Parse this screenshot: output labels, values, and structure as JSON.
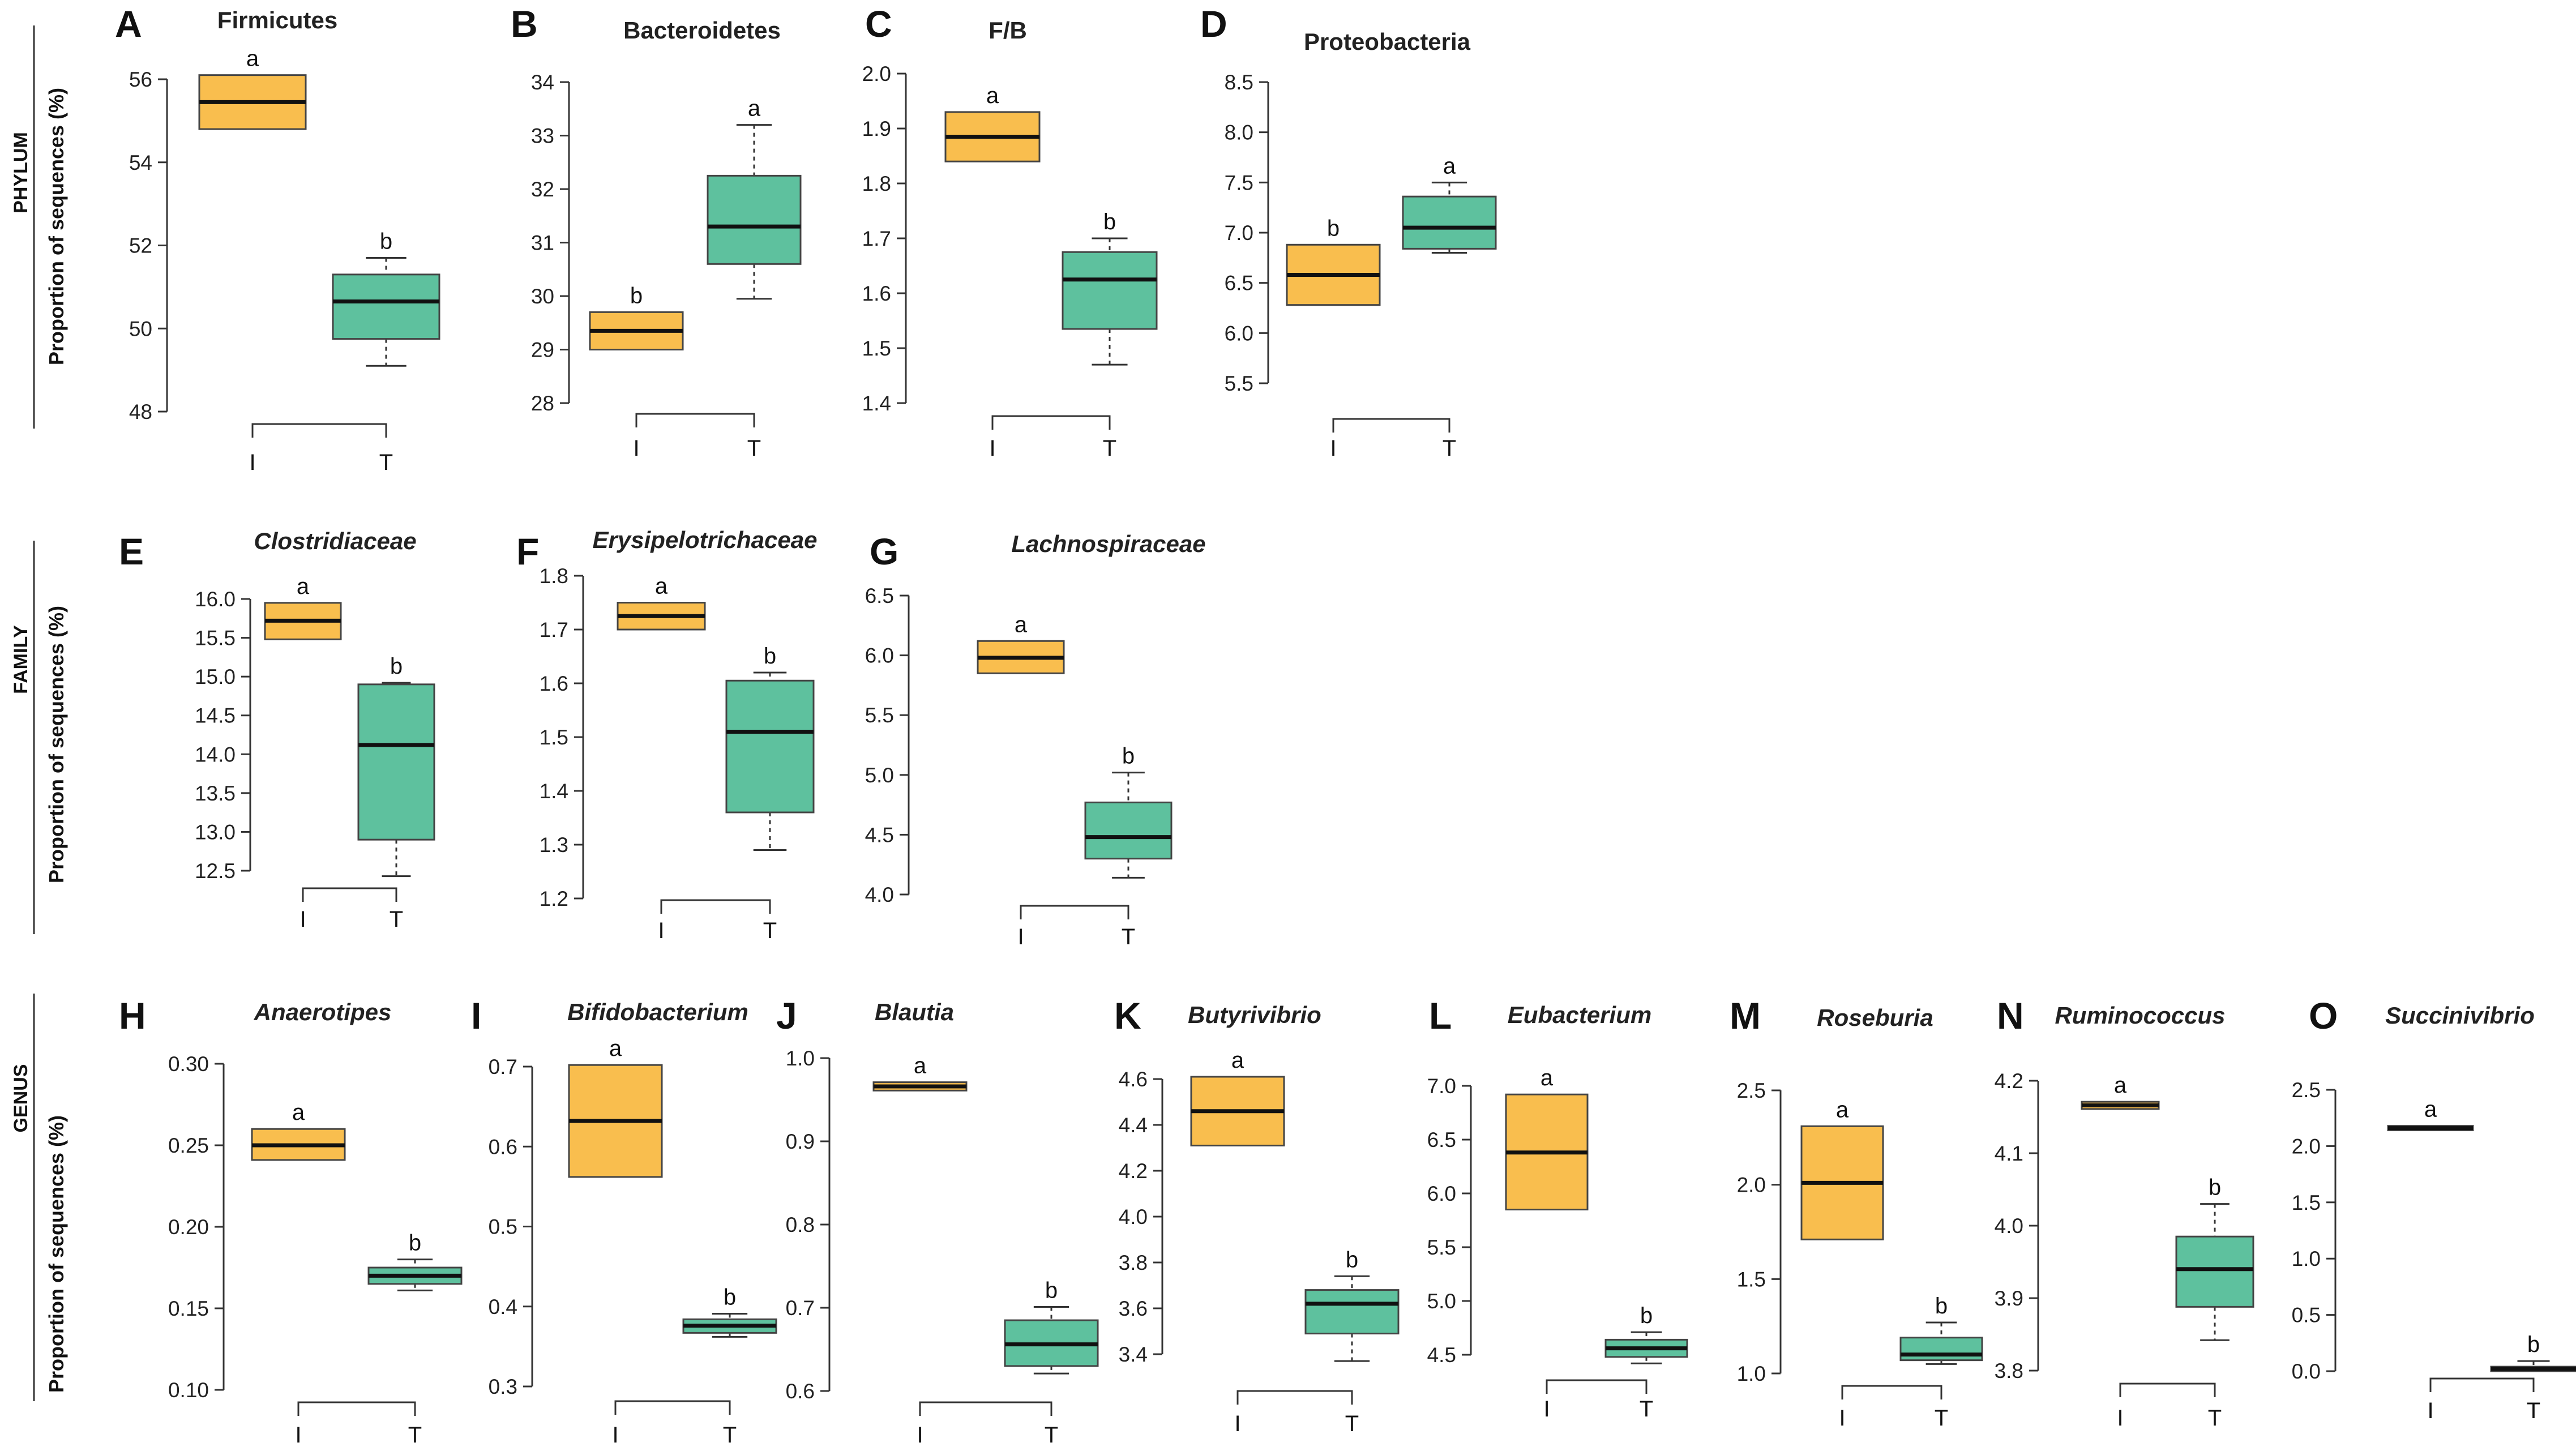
{
  "figure": {
    "colors": {
      "I": "#F9BE4E",
      "T": "#5EC19E",
      "median": "#111111",
      "axis": "#333333"
    },
    "ylabel": "Proportion of sequences (%)",
    "rows": [
      "PHYLUM",
      "FAMILY",
      "GENUS"
    ]
  },
  "chart_data": [
    {
      "letter": "A",
      "title": "Firmicutes",
      "italic": false,
      "row": 0,
      "type": "box",
      "ylim": [
        48,
        56
      ],
      "yticks": [
        48,
        50,
        52,
        54,
        56
      ],
      "ytick_labels": [
        "48",
        "50",
        "52",
        "54",
        "56"
      ],
      "categories": [
        "I",
        "T"
      ],
      "boxes": [
        {
          "group": "I",
          "whisker_low": 54.8,
          "q1": 54.8,
          "median": 55.45,
          "q3": 56.1,
          "whisker_high": 56.1,
          "label": "a"
        },
        {
          "group": "T",
          "whisker_low": 49.1,
          "q1": 49.75,
          "median": 50.65,
          "q3": 51.3,
          "whisker_high": 51.7,
          "label": "b"
        }
      ]
    },
    {
      "letter": "B",
      "title": "Bacteroidetes",
      "italic": false,
      "row": 0,
      "type": "box",
      "ylim": [
        28,
        34
      ],
      "yticks": [
        28,
        29,
        30,
        31,
        32,
        33,
        34
      ],
      "ytick_labels": [
        "28",
        "29",
        "30",
        "31",
        "32",
        "33",
        "34"
      ],
      "categories": [
        "I",
        "T"
      ],
      "boxes": [
        {
          "group": "I",
          "whisker_low": 29.0,
          "q1": 29.0,
          "median": 29.35,
          "q3": 29.7,
          "whisker_high": 29.7,
          "label": "b"
        },
        {
          "group": "T",
          "whisker_low": 29.95,
          "q1": 30.6,
          "median": 31.3,
          "q3": 32.25,
          "whisker_high": 33.2,
          "label": "a"
        }
      ]
    },
    {
      "letter": "C",
      "title": "F/B",
      "italic": false,
      "row": 0,
      "type": "box",
      "ylim": [
        1.4,
        2.0
      ],
      "yticks": [
        1.4,
        1.5,
        1.6,
        1.7,
        1.8,
        1.9,
        2.0
      ],
      "ytick_labels": [
        "1.4",
        "1.5",
        "1.6",
        "1.7",
        "1.8",
        "1.9",
        "2.0"
      ],
      "categories": [
        "I",
        "T"
      ],
      "boxes": [
        {
          "group": "I",
          "whisker_low": 1.84,
          "q1": 1.84,
          "median": 1.885,
          "q3": 1.93,
          "whisker_high": 1.93,
          "label": "a"
        },
        {
          "group": "T",
          "whisker_low": 1.47,
          "q1": 1.535,
          "median": 1.625,
          "q3": 1.675,
          "whisker_high": 1.7,
          "label": "b"
        }
      ]
    },
    {
      "letter": "D",
      "title": "Proteobacteria",
      "italic": false,
      "row": 0,
      "type": "box",
      "ylim": [
        5.5,
        8.5
      ],
      "yticks": [
        5.5,
        6.0,
        6.5,
        7.0,
        7.5,
        8.0,
        8.5
      ],
      "ytick_labels": [
        "5.5",
        "6.0",
        "6.5",
        "7.0",
        "7.5",
        "8.0",
        "8.5"
      ],
      "categories": [
        "I",
        "T"
      ],
      "boxes": [
        {
          "group": "I",
          "whisker_low": 6.28,
          "q1": 6.28,
          "median": 6.58,
          "q3": 6.88,
          "whisker_high": 6.88,
          "label": "b"
        },
        {
          "group": "T",
          "whisker_low": 6.8,
          "q1": 6.84,
          "median": 7.05,
          "q3": 7.36,
          "whisker_high": 7.5,
          "label": "a"
        }
      ]
    },
    {
      "letter": "E",
      "title": "Clostridiaceae",
      "italic": true,
      "row": 1,
      "type": "box",
      "ylim": [
        12.5,
        16.0
      ],
      "yticks": [
        12.5,
        13.0,
        13.5,
        14.0,
        14.5,
        15.0,
        15.5,
        16.0
      ],
      "ytick_labels": [
        "12.5",
        "13.0",
        "13.5",
        "14.0",
        "14.5",
        "15.0",
        "15.5",
        "16.0"
      ],
      "categories": [
        "I",
        "T"
      ],
      "boxes": [
        {
          "group": "I",
          "whisker_low": 15.48,
          "q1": 15.48,
          "median": 15.72,
          "q3": 15.95,
          "whisker_high": 15.95,
          "label": "a"
        },
        {
          "group": "T",
          "whisker_low": 12.43,
          "q1": 12.9,
          "median": 14.12,
          "q3": 14.9,
          "whisker_high": 14.92,
          "label": "b"
        }
      ]
    },
    {
      "letter": "F",
      "title": "Erysipelotrichaceae",
      "italic": true,
      "row": 1,
      "type": "box",
      "ylim": [
        1.2,
        1.8
      ],
      "yticks": [
        1.2,
        1.3,
        1.4,
        1.5,
        1.6,
        1.7,
        1.8
      ],
      "ytick_labels": [
        "1.2",
        "1.3",
        "1.4",
        "1.5",
        "1.6",
        "1.7",
        "1.8"
      ],
      "categories": [
        "I",
        "T"
      ],
      "boxes": [
        {
          "group": "I",
          "whisker_low": 1.7,
          "q1": 1.7,
          "median": 1.725,
          "q3": 1.75,
          "whisker_high": 1.75,
          "label": "a"
        },
        {
          "group": "T",
          "whisker_low": 1.29,
          "q1": 1.36,
          "median": 1.51,
          "q3": 1.605,
          "whisker_high": 1.62,
          "label": "b"
        }
      ]
    },
    {
      "letter": "G",
      "title": "Lachnospiraceae",
      "italic": true,
      "row": 1,
      "type": "box",
      "ylim": [
        4.0,
        6.5
      ],
      "yticks": [
        4.0,
        4.5,
        5.0,
        5.5,
        6.0,
        6.5
      ],
      "ytick_labels": [
        "4.0",
        "4.5",
        "5.0",
        "5.5",
        "6.0",
        "6.5"
      ],
      "categories": [
        "I",
        "T"
      ],
      "boxes": [
        {
          "group": "I",
          "whisker_low": 5.85,
          "q1": 5.85,
          "median": 5.98,
          "q3": 6.12,
          "whisker_high": 6.12,
          "label": "a"
        },
        {
          "group": "T",
          "whisker_low": 4.14,
          "q1": 4.3,
          "median": 4.48,
          "q3": 4.77,
          "whisker_high": 5.02,
          "label": "b"
        }
      ]
    },
    {
      "letter": "H",
      "title": "Anaerotipes",
      "italic": true,
      "row": 2,
      "type": "box",
      "ylim": [
        0.1,
        0.3
      ],
      "yticks": [
        0.1,
        0.15,
        0.2,
        0.25,
        0.3
      ],
      "ytick_labels": [
        "0.10",
        "0.15",
        "0.20",
        "0.25",
        "0.30"
      ],
      "categories": [
        "I",
        "T"
      ],
      "boxes": [
        {
          "group": "I",
          "whisker_low": 0.241,
          "q1": 0.241,
          "median": 0.25,
          "q3": 0.26,
          "whisker_high": 0.26,
          "label": "a"
        },
        {
          "group": "T",
          "whisker_low": 0.161,
          "q1": 0.165,
          "median": 0.17,
          "q3": 0.175,
          "whisker_high": 0.18,
          "label": "b"
        }
      ]
    },
    {
      "letter": "I",
      "title": "Bifidobacterium",
      "italic": true,
      "row": 2,
      "type": "box",
      "ylim": [
        0.3,
        0.7
      ],
      "yticks": [
        0.3,
        0.4,
        0.5,
        0.6,
        0.7
      ],
      "ytick_labels": [
        "0.3",
        "0.4",
        "0.5",
        "0.6",
        "0.7"
      ],
      "categories": [
        "I",
        "T"
      ],
      "boxes": [
        {
          "group": "I",
          "whisker_low": 0.562,
          "q1": 0.562,
          "median": 0.632,
          "q3": 0.702,
          "whisker_high": 0.702,
          "label": "a"
        },
        {
          "group": "T",
          "whisker_low": 0.362,
          "q1": 0.367,
          "median": 0.376,
          "q3": 0.384,
          "whisker_high": 0.391,
          "label": "b"
        }
      ]
    },
    {
      "letter": "J",
      "title": "Blautia",
      "italic": true,
      "row": 2,
      "type": "box",
      "ylim": [
        0.6,
        1.0
      ],
      "yticks": [
        0.6,
        0.7,
        0.8,
        0.9,
        1.0
      ],
      "ytick_labels": [
        "0.6",
        "0.7",
        "0.8",
        "0.9",
        "1.0"
      ],
      "categories": [
        "I",
        "T"
      ],
      "boxes": [
        {
          "group": "I",
          "whisker_low": 0.961,
          "q1": 0.961,
          "median": 0.966,
          "q3": 0.971,
          "whisker_high": 0.971,
          "label": "a"
        },
        {
          "group": "T",
          "whisker_low": 0.621,
          "q1": 0.63,
          "median": 0.656,
          "q3": 0.685,
          "whisker_high": 0.701,
          "label": "b"
        }
      ]
    },
    {
      "letter": "K",
      "title": "Butyrivibrio",
      "italic": true,
      "row": 2,
      "type": "box",
      "ylim": [
        3.4,
        4.6
      ],
      "yticks": [
        3.4,
        3.6,
        3.8,
        4.0,
        4.2,
        4.4,
        4.6
      ],
      "ytick_labels": [
        "3.4",
        "3.6",
        "3.8",
        "4.0",
        "4.2",
        "4.4",
        "4.6"
      ],
      "categories": [
        "I",
        "T"
      ],
      "boxes": [
        {
          "group": "I",
          "whisker_low": 4.31,
          "q1": 4.31,
          "median": 4.46,
          "q3": 4.61,
          "whisker_high": 4.61,
          "label": "a"
        },
        {
          "group": "T",
          "whisker_low": 3.37,
          "q1": 3.49,
          "median": 3.62,
          "q3": 3.68,
          "whisker_high": 3.74,
          "label": "b"
        }
      ]
    },
    {
      "letter": "L",
      "title": "Eubacterium",
      "italic": true,
      "row": 2,
      "type": "box",
      "ylim": [
        4.5,
        7.0
      ],
      "yticks": [
        4.5,
        5.0,
        5.5,
        6.0,
        6.5,
        7.0
      ],
      "ytick_labels": [
        "4.5",
        "5.0",
        "5.5",
        "6.0",
        "6.5",
        "7.0"
      ],
      "categories": [
        "I",
        "T"
      ],
      "boxes": [
        {
          "group": "I",
          "whisker_low": 5.85,
          "q1": 5.85,
          "median": 6.38,
          "q3": 6.92,
          "whisker_high": 6.92,
          "label": "a"
        },
        {
          "group": "T",
          "whisker_low": 4.42,
          "q1": 4.48,
          "median": 4.56,
          "q3": 4.64,
          "whisker_high": 4.71,
          "label": "b"
        }
      ]
    },
    {
      "letter": "M",
      "title": "Roseburia",
      "italic": true,
      "row": 2,
      "type": "box",
      "ylim": [
        1.0,
        2.5
      ],
      "yticks": [
        1.0,
        1.5,
        2.0,
        2.5
      ],
      "ytick_labels": [
        "1.0",
        "1.5",
        "2.0",
        "2.5"
      ],
      "categories": [
        "I",
        "T"
      ],
      "boxes": [
        {
          "group": "I",
          "whisker_low": 1.71,
          "q1": 1.71,
          "median": 2.01,
          "q3": 2.31,
          "whisker_high": 2.31,
          "label": "a"
        },
        {
          "group": "T",
          "whisker_low": 1.05,
          "q1": 1.07,
          "median": 1.1,
          "q3": 1.19,
          "whisker_high": 1.27,
          "label": "b"
        }
      ]
    },
    {
      "letter": "N",
      "title": "Ruminococcus",
      "italic": true,
      "row": 2,
      "type": "box",
      "ylim": [
        3.8,
        4.2
      ],
      "yticks": [
        3.8,
        3.9,
        4.0,
        4.1,
        4.2
      ],
      "ytick_labels": [
        "3.8",
        "3.9",
        "4.0",
        "4.1",
        "4.2"
      ],
      "categories": [
        "I",
        "T"
      ],
      "boxes": [
        {
          "group": "I",
          "whisker_low": 4.161,
          "q1": 4.161,
          "median": 4.166,
          "q3": 4.171,
          "whisker_high": 4.171,
          "label": "a"
        },
        {
          "group": "T",
          "whisker_low": 3.842,
          "q1": 3.888,
          "median": 3.94,
          "q3": 3.985,
          "whisker_high": 4.03,
          "label": "b"
        }
      ]
    },
    {
      "letter": "O",
      "title": "Succinivibrio",
      "italic": true,
      "row": 2,
      "type": "box",
      "ylim": [
        0.0,
        2.5
      ],
      "yticks": [
        0.0,
        0.5,
        1.0,
        1.5,
        2.0,
        2.5
      ],
      "ytick_labels": [
        "0.0",
        "0.5",
        "1.0",
        "1.5",
        "2.0",
        "2.5"
      ],
      "categories": [
        "I",
        "T"
      ],
      "boxes": [
        {
          "group": "I",
          "whisker_low": 2.14,
          "q1": 2.14,
          "median": 2.16,
          "q3": 2.18,
          "whisker_high": 2.18,
          "label": "a"
        },
        {
          "group": "T",
          "whisker_low": 0.0,
          "q1": 0.0,
          "median": 0.02,
          "q3": 0.04,
          "whisker_high": 0.09,
          "label": "b"
        }
      ]
    }
  ]
}
